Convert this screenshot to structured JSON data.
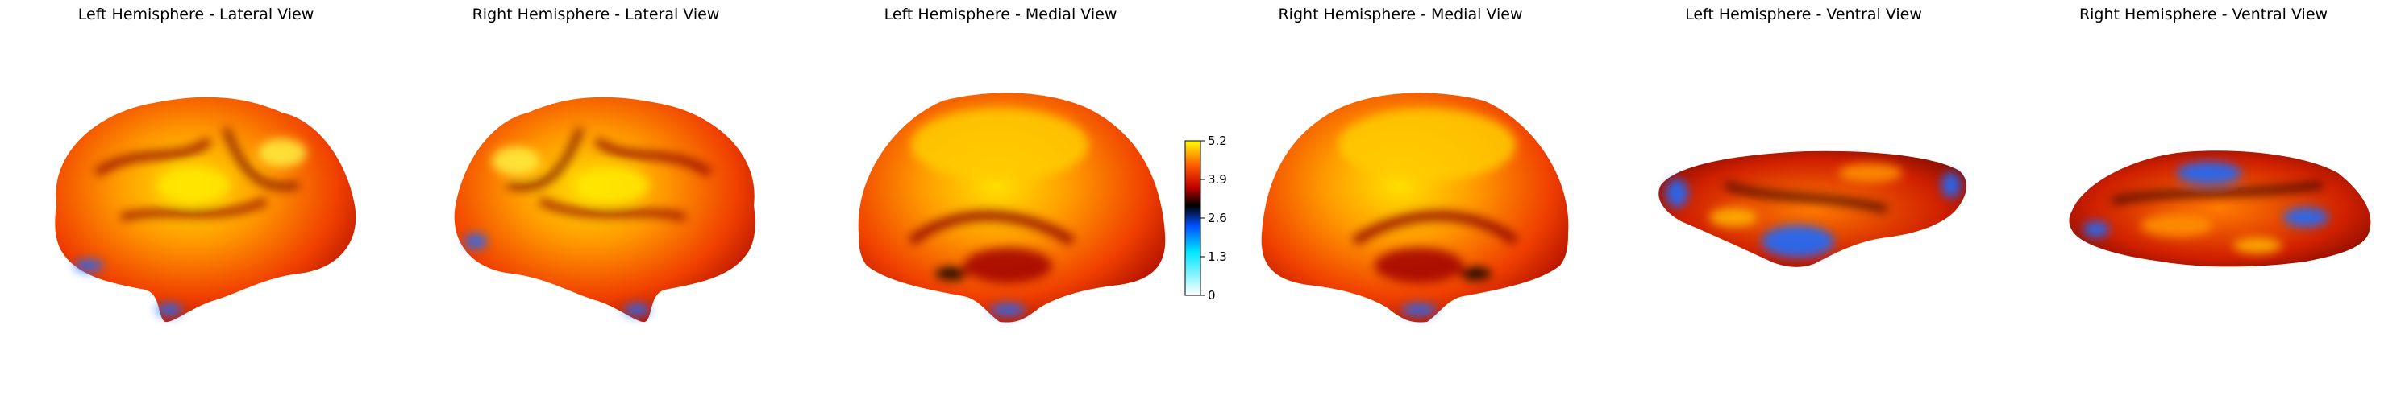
{
  "panels": [
    {
      "title": "Left Hemisphere - Lateral View",
      "view": "lateral",
      "hemisphere": "left"
    },
    {
      "title": "Right Hemisphere - Lateral View",
      "view": "lateral",
      "hemisphere": "right"
    },
    {
      "title": "Left Hemisphere - Medial View",
      "view": "medial",
      "hemisphere": "left"
    },
    {
      "title": "Right Hemisphere - Medial View",
      "view": "medial",
      "hemisphere": "right"
    },
    {
      "title": "Left Hemisphere - Ventral View",
      "view": "ventral",
      "hemisphere": "left"
    },
    {
      "title": "Right Hemisphere - Ventral View",
      "view": "ventral",
      "hemisphere": "right"
    }
  ],
  "colorbar": {
    "ticks": [
      "0",
      "1.3",
      "2.6",
      "3.9",
      "5.2"
    ],
    "min": 0,
    "max": 5.2,
    "colormap": "cold-hot",
    "colors": [
      "#ffffff",
      "#00e5ff",
      "#0050ff",
      "#000000",
      "#c00000",
      "#ff5a00",
      "#ffff00"
    ]
  },
  "colors": {
    "background": "#ffffff",
    "hot_dark": "#a00000",
    "hot_mid": "#ff4500",
    "hot_light": "#ffd400",
    "cold": "#1a6cff"
  }
}
